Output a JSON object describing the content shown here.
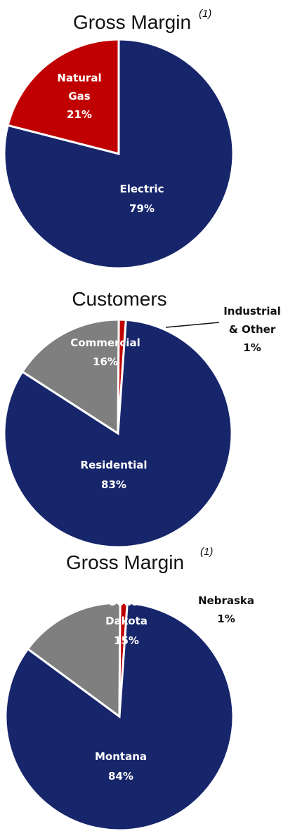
{
  "chart_data": [
    {
      "type": "pie",
      "title": "Gross Margin",
      "title_note": "(1)",
      "slices": [
        {
          "label": "Electric",
          "value": 79,
          "value_label": "79%",
          "color": "#17266b"
        },
        {
          "label": "Natural Gas",
          "value": 21,
          "value_label": "21%",
          "color": "#c00000"
        }
      ]
    },
    {
      "type": "pie",
      "title": "Customers",
      "title_note": "",
      "slices": [
        {
          "label": "Residential",
          "value": 83,
          "value_label": "83%",
          "color": "#17266b"
        },
        {
          "label": "Commercial",
          "value": 16,
          "value_label": "16%",
          "color": "#7f7f7f"
        },
        {
          "label": "Industrial & Other",
          "value": 1,
          "value_label": "1%",
          "color": "#c00000"
        }
      ]
    },
    {
      "type": "pie",
      "title": "Gross Margin",
      "title_note": "(1)",
      "slices": [
        {
          "label": "Montana",
          "value": 84,
          "value_label": "84%",
          "color": "#17266b"
        },
        {
          "label": "South Dakota",
          "value": 15,
          "value_label": "15%",
          "color": "#7f7f7f"
        },
        {
          "label": "Nebraska",
          "value": 1,
          "value_label": "1%",
          "color": "#c00000"
        }
      ]
    }
  ]
}
